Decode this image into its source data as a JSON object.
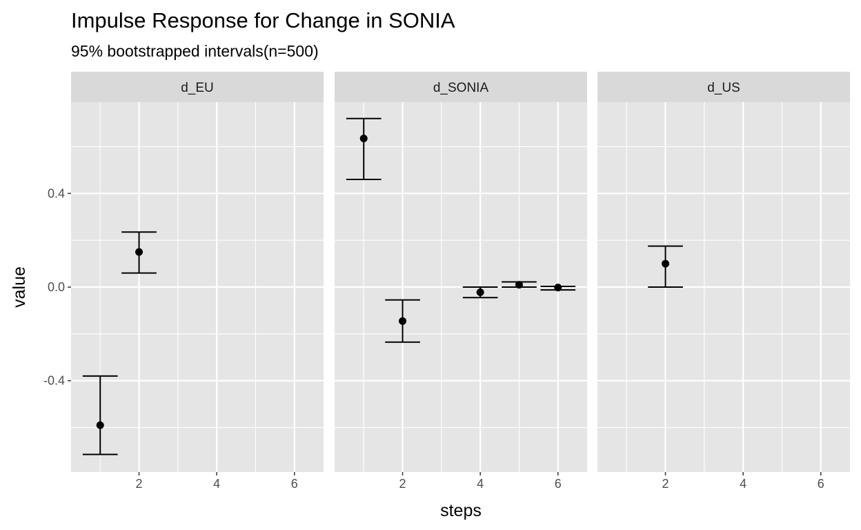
{
  "chart_data": {
    "type": "scatter",
    "title": "Impulse Response for Change in SONIA",
    "subtitle": "95% bootstrapped intervals(n=500)",
    "xlabel": "steps",
    "ylabel": "value",
    "xlim": [
      0.25,
      6.75
    ],
    "ylim": [
      -0.79,
      0.79
    ],
    "x_ticks": [
      2,
      4,
      6
    ],
    "y_ticks": [
      -0.4,
      0.0,
      0.4
    ],
    "y_tick_labels": [
      "-0.4",
      "0.0",
      "0.4"
    ],
    "grid": true,
    "panels": [
      {
        "name": "d_EU",
        "points": [
          {
            "x": 1,
            "y": -0.59,
            "lower": -0.715,
            "upper": -0.38
          },
          {
            "x": 2,
            "y": 0.15,
            "lower": 0.06,
            "upper": 0.235
          }
        ]
      },
      {
        "name": "d_SONIA",
        "points": [
          {
            "x": 1,
            "y": 0.635,
            "lower": 0.46,
            "upper": 0.72
          },
          {
            "x": 2,
            "y": -0.145,
            "lower": -0.235,
            "upper": -0.055
          },
          {
            "x": 4,
            "y": -0.022,
            "lower": -0.045,
            "upper": 0.0
          },
          {
            "x": 5,
            "y": 0.01,
            "lower": 0.0,
            "upper": 0.022
          },
          {
            "x": 6,
            "y": -0.002,
            "lower": -0.012,
            "upper": 0.003
          }
        ]
      },
      {
        "name": "d_US",
        "points": [
          {
            "x": 2,
            "y": 0.1,
            "lower": 0.0,
            "upper": 0.175
          }
        ]
      }
    ],
    "colors": {
      "panel_bg": "#e5e5e5",
      "strip_bg": "#d9d9d9",
      "grid": "#ffffff",
      "points": "#000000"
    }
  }
}
